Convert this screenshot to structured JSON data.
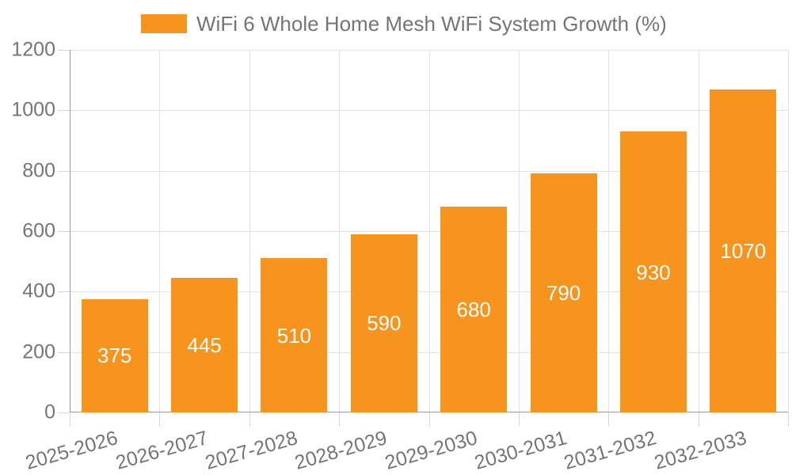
{
  "chart_data": {
    "type": "bar",
    "title": "WiFi 6 Whole Home Mesh WiFi System Growth (%)",
    "categories": [
      "2025-2026",
      "2026-2027",
      "2027-2028",
      "2028-2029",
      "2029-2030",
      "2030-2031",
      "2031-2032",
      "2032-2033"
    ],
    "values": [
      375,
      445,
      510,
      590,
      680,
      790,
      930,
      1070
    ],
    "xlabel": "",
    "ylabel": "",
    "ylim": [
      0,
      1200
    ],
    "yticks": [
      0,
      200,
      400,
      600,
      800,
      1000,
      1200
    ],
    "grid": true,
    "legend_position": "top",
    "colors": {
      "bar": "#F7941E",
      "value_label": "#FFFFFF",
      "text": "#757575",
      "axis": "#999999",
      "gridline": "#E3E3E3",
      "tick": "#D8D8D8"
    }
  }
}
